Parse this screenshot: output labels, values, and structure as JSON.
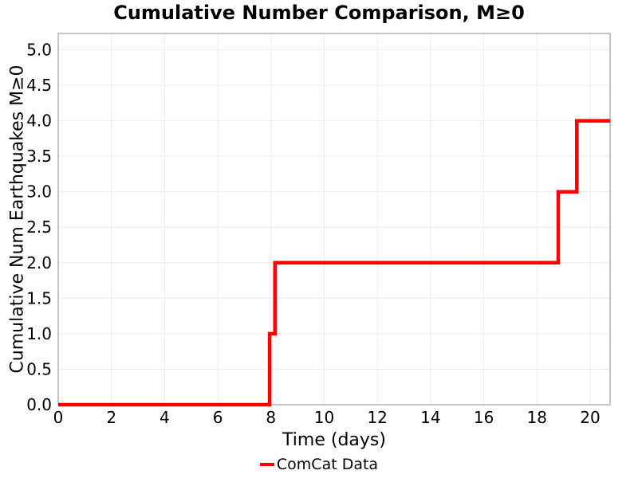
{
  "chart_data": {
    "type": "line",
    "line_style": "step-post",
    "title": "Cumulative Number Comparison, M≥0",
    "xlabel": "Time (days)",
    "ylabel": "Cumulative Num Earthquakes M≥0",
    "xlim": [
      0,
      20.75
    ],
    "ylim": [
      0,
      5.23
    ],
    "xticks": [
      0,
      2,
      4,
      6,
      8,
      10,
      12,
      14,
      16,
      18,
      20
    ],
    "xtick_labels": [
      "0",
      "2",
      "4",
      "6",
      "8",
      "10",
      "12",
      "14",
      "16",
      "18",
      "20"
    ],
    "yticks": [
      0,
      0.5,
      1,
      1.5,
      2,
      2.5,
      3,
      3.5,
      4,
      4.5,
      5
    ],
    "ytick_labels": [
      "0.0",
      "0.5",
      "1.0",
      "1.5",
      "2.0",
      "2.5",
      "3.0",
      "3.5",
      "4.0",
      "4.5",
      "5.0"
    ],
    "grid": true,
    "legend_position": "bottom-center",
    "legend": [
      {
        "label": "ComCat Data",
        "color": "#ff0000"
      }
    ],
    "series": [
      {
        "name": "ComCat Data",
        "color": "#ff0000",
        "line_width": 4.5,
        "event_times_days": [
          7.95,
          8.15,
          18.8,
          19.5
        ],
        "points": [
          [
            0,
            0
          ],
          [
            7.95,
            0
          ],
          [
            7.95,
            1
          ],
          [
            8.15,
            1
          ],
          [
            8.15,
            2
          ],
          [
            18.8,
            2
          ],
          [
            18.8,
            3
          ],
          [
            19.5,
            3
          ],
          [
            19.5,
            4
          ],
          [
            20.75,
            4
          ]
        ]
      }
    ],
    "colors": {
      "grid": "#ececec",
      "border": "#a8a8a8",
      "text": "#000000",
      "background": "#ffffff"
    }
  }
}
